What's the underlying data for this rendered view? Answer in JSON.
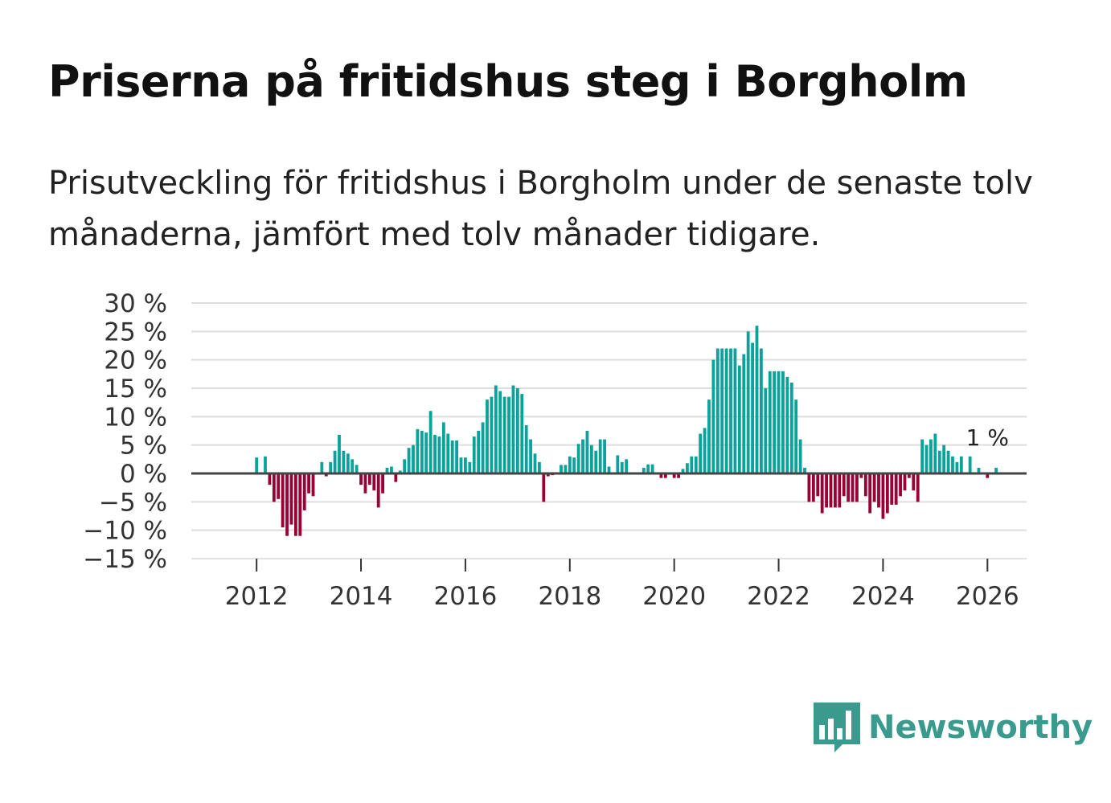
{
  "title": "Priserna på fritidshus steg i Borgholm",
  "subtitle": "Prisutveckling för fritidshus i Borgholm under de senaste tolv månaderna, jämfört med tolv månader tidigare.",
  "brand": {
    "name": "Newsworthy",
    "icon": "chart-bubble-icon",
    "color": "#3a9a8e"
  },
  "colors": {
    "positive": "#0aa39b",
    "negative": "#990033",
    "grid": "#dddddd",
    "zero_line": "#444444"
  },
  "chart_data": {
    "type": "bar",
    "title": "Priserna på fritidshus steg i Borgholm",
    "xlabel": "",
    "ylabel": "",
    "ylim": [
      -15,
      30
    ],
    "xlim": [
      2010.75,
      2026.75
    ],
    "y_ticks": [
      {
        "value": 30,
        "label": "30 %"
      },
      {
        "value": 25,
        "label": "25 %"
      },
      {
        "value": 20,
        "label": "20 %"
      },
      {
        "value": 15,
        "label": "15 %"
      },
      {
        "value": 10,
        "label": "10 %"
      },
      {
        "value": 5,
        "label": "5 %"
      },
      {
        "value": 0,
        "label": "0 %"
      },
      {
        "value": -5,
        "label": "−5 %"
      },
      {
        "value": -10,
        "label": "−10 %"
      },
      {
        "value": -15,
        "label": "−15 %"
      }
    ],
    "x_ticks": [
      {
        "value": 2012,
        "label": "2012"
      },
      {
        "value": 2014,
        "label": "2014"
      },
      {
        "value": 2016,
        "label": "2016"
      },
      {
        "value": 2018,
        "label": "2018"
      },
      {
        "value": 2020,
        "label": "2020"
      },
      {
        "value": 2022,
        "label": "2022"
      },
      {
        "value": 2024,
        "label": "2024"
      },
      {
        "value": 2026,
        "label": "2026"
      }
    ],
    "annotation": {
      "text": "1 %",
      "x": 2026.0,
      "y": 1
    },
    "start": {
      "year": 2012,
      "month": 1
    },
    "values": [
      2.8,
      0,
      3.0,
      -2.0,
      -5.0,
      -4.5,
      -9.5,
      -11.0,
      -9.0,
      -11.0,
      -11.0,
      -6.5,
      -3.5,
      -4.0,
      0,
      2.0,
      -0.5,
      2.0,
      4.0,
      6.8,
      4.0,
      3.5,
      2.5,
      1.5,
      -2.0,
      -3.5,
      -2.0,
      -3.0,
      -6.0,
      -3.5,
      1.0,
      1.2,
      -1.5,
      0.5,
      2.5,
      4.5,
      5.0,
      7.8,
      7.5,
      7.2,
      11.0,
      6.8,
      6.5,
      9.0,
      7.0,
      5.8,
      5.8,
      2.8,
      2.8,
      2.0,
      6.5,
      7.5,
      9.0,
      13.0,
      13.5,
      15.5,
      14.5,
      13.5,
      13.5,
      15.5,
      15.0,
      14.0,
      8.5,
      6.0,
      3.5,
      2.0,
      -5.0,
      -0.5,
      -0.3,
      0,
      1.5,
      1.5,
      3.0,
      2.8,
      5.2,
      6.0,
      7.5,
      5.0,
      4.0,
      6.0,
      6.0,
      1.2,
      0,
      3.2,
      2.0,
      2.5,
      0,
      0,
      0,
      1.0,
      1.6,
      1.6,
      0,
      -0.8,
      -0.8,
      0,
      -0.8,
      -0.8,
      0.8,
      1.8,
      3.0,
      3.0,
      7.0,
      8.0,
      13.0,
      20.0,
      22.0,
      22.0,
      22.0,
      22.0,
      22.0,
      19.0,
      21.0,
      25.0,
      23.0,
      26.0,
      22.0,
      15.0,
      18.0,
      18.0,
      18.0,
      18.0,
      17.0,
      16.0,
      13.0,
      6.0,
      1.0,
      -5.0,
      -5.0,
      -4.0,
      -7.0,
      -6.0,
      -6.0,
      -6.0,
      -6.0,
      -4.0,
      -5.0,
      -5.0,
      -5.0,
      -0.8,
      -4.0,
      -7.0,
      -5.0,
      -6.0,
      -8.0,
      -7.0,
      -5.5,
      -5.5,
      -4.0,
      -3.0,
      -0.8,
      -3.0,
      -5.0,
      6.0,
      5.0,
      6.0,
      7.0,
      4.0,
      5.0,
      4.0,
      3.0,
      2.0,
      3.0,
      0,
      3.0,
      0,
      1.0,
      0,
      -0.8,
      0,
      1.0
    ]
  }
}
